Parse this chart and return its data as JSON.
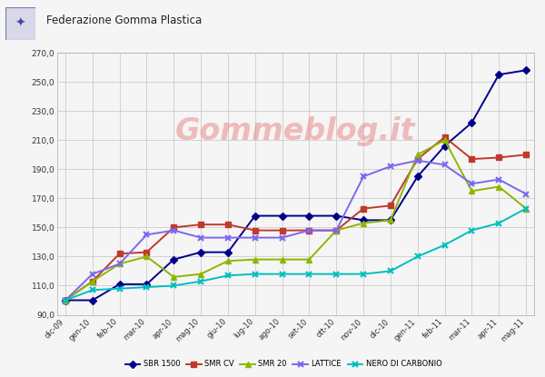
{
  "x_labels": [
    "dic-09",
    "gen-10",
    "feb-10",
    "mar-10",
    "apr-10",
    "mag-10",
    "giu-10",
    "lug-10",
    "ago-10",
    "set-10",
    "ott-10",
    "nov-10",
    "dic-10",
    "gen-11",
    "feb-11",
    "mar-11",
    "apr-11",
    "mag-11"
  ],
  "SBR_1500": [
    100,
    100,
    111,
    111,
    128,
    133,
    133,
    158,
    158,
    158,
    158,
    155,
    155,
    185,
    206,
    222,
    255,
    258
  ],
  "SMR_CV": [
    100,
    113,
    132,
    133,
    150,
    152,
    152,
    148,
    148,
    148,
    148,
    163,
    165,
    197,
    212,
    197,
    198,
    200
  ],
  "SMR_20": [
    100,
    113,
    125,
    130,
    116,
    118,
    127,
    128,
    128,
    128,
    148,
    153,
    155,
    200,
    210,
    175,
    178,
    163
  ],
  "LATTICE": [
    100,
    118,
    125,
    145,
    148,
    143,
    143,
    143,
    143,
    148,
    148,
    185,
    192,
    196,
    193,
    180,
    183,
    173
  ],
  "NERO_DI_CARBONIO": [
    100,
    107,
    108,
    109,
    110,
    113,
    117,
    118,
    118,
    118,
    118,
    118,
    120,
    130,
    138,
    148,
    153,
    163
  ],
  "colors": {
    "SBR_1500": "#00008B",
    "SMR_CV": "#C0392B",
    "SMR_20": "#8DB600",
    "LATTICE": "#7B68EE",
    "NERO_DI_CARBONIO": "#00BFBF"
  },
  "ylim": [
    90,
    270
  ],
  "yticks": [
    90,
    110,
    130,
    150,
    170,
    190,
    210,
    230,
    250,
    270
  ],
  "background_color": "#f5f5f5",
  "plot_bg_color": "#f5f5f5",
  "grid_color": "#cccccc",
  "watermark_text": "Gommeblog.it",
  "watermark_color": "#e88080",
  "header_text": "Federazione Gomma Plastica",
  "legend_labels": [
    "SBR 1500",
    "SMR CV",
    "SMR 20",
    "LATTICE",
    "NERO DI CARBONIO"
  ],
  "marker_SBR": "D",
  "marker_SMR_CV": "s",
  "marker_SMR_20": "^",
  "marker_LATTICE": "x",
  "marker_NERO": "x"
}
